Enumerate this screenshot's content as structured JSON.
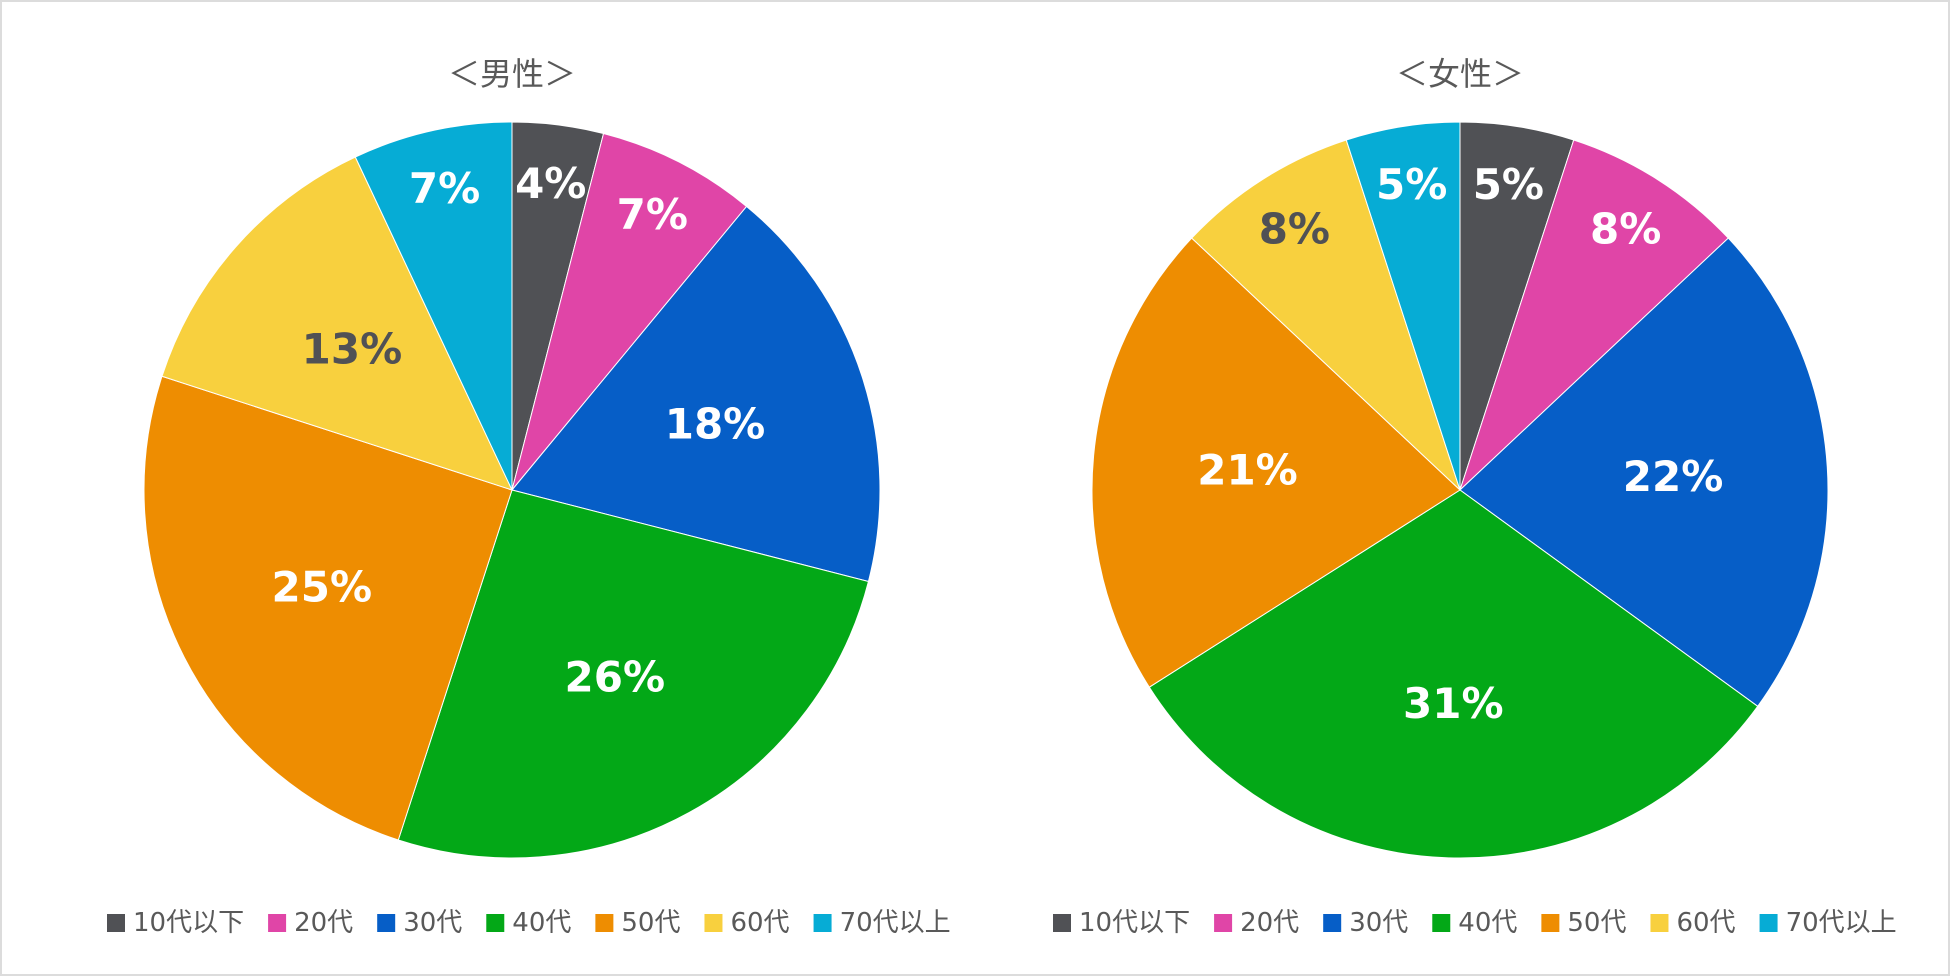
{
  "legend": [
    "10代以下",
    "20代",
    "30代",
    "40代",
    "50代",
    "60代",
    "70代以上"
  ],
  "colors": [
    "#505155",
    "#e045a7",
    "#065ec7",
    "#03a817",
    "#ee8d01",
    "#f8d03e",
    "#06acd5"
  ],
  "label_colors": [
    "#ffffff",
    "#ffffff",
    "#ffffff",
    "#ffffff",
    "#ffffff",
    "#505155",
    "#ffffff"
  ],
  "chart_data": [
    {
      "type": "pie",
      "title": "＜男性＞",
      "categories": [
        "10代以下",
        "20代",
        "30代",
        "40代",
        "50代",
        "60代",
        "70代以上"
      ],
      "values": [
        4,
        7,
        18,
        26,
        25,
        13,
        7
      ],
      "labels": [
        "4%",
        "7%",
        "18%",
        "26%",
        "25%",
        "13%",
        "7%"
      ],
      "start": "12 o'clock",
      "direction": "clockwise",
      "legend_position": "bottom"
    },
    {
      "type": "pie",
      "title": "＜女性＞",
      "categories": [
        "10代以下",
        "20代",
        "30代",
        "40代",
        "50代",
        "60代",
        "70代以上"
      ],
      "values": [
        5,
        8,
        22,
        31,
        21,
        8,
        5
      ],
      "labels": [
        "5%",
        "8%",
        "22%",
        "31%",
        "21%",
        "8%",
        "5%"
      ],
      "start": "12 o'clock",
      "direction": "clockwise",
      "legend_position": "bottom"
    }
  ]
}
